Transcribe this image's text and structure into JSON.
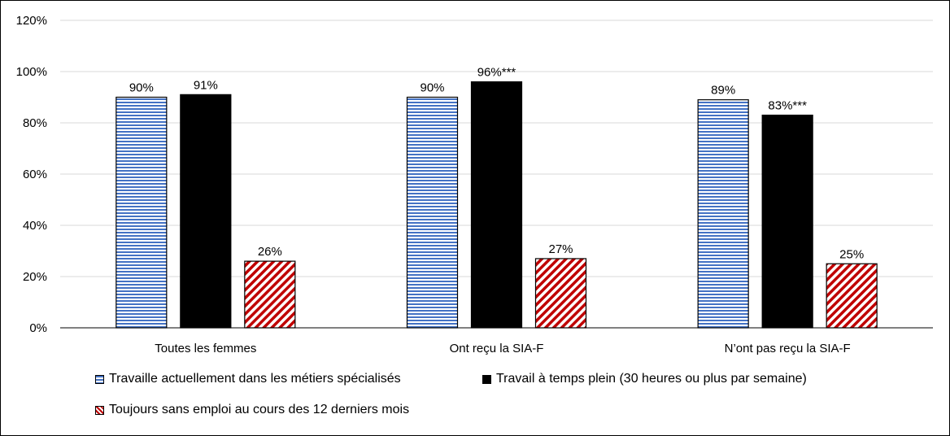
{
  "chart_data": {
    "type": "bar",
    "categories": [
      "Toutes les femmes",
      "Ont reçu la SIA-F",
      "N’ont pas reçu la SIA-F"
    ],
    "series": [
      {
        "name": "Travaille actuellement dans les métiers spécialisés",
        "values": [
          90,
          90,
          89
        ],
        "labels": [
          "90%",
          "90%",
          "89%"
        ],
        "color": "#4472c4",
        "pattern": "horizontal-stripes"
      },
      {
        "name": "Travail à temps plein (30 heures ou plus par semaine)",
        "values": [
          91,
          96,
          83
        ],
        "labels": [
          "91%",
          "96%***",
          "83%***"
        ],
        "color": "#000000",
        "pattern": "solid"
      },
      {
        "name": "Toujours sans emploi au cours des 12 derniers mois",
        "values": [
          26,
          27,
          25
        ],
        "labels": [
          "26%",
          "27%",
          "25%"
        ],
        "color": "#c00000",
        "pattern": "diagonal-stripes"
      }
    ],
    "ylim": [
      0,
      120
    ],
    "yticks": [
      0,
      20,
      40,
      60,
      80,
      100,
      120
    ],
    "ytick_labels": [
      "0%",
      "20%",
      "40%",
      "60%",
      "80%",
      "100%",
      "120%"
    ],
    "grid": true,
    "legend_position": "bottom",
    "title": "",
    "xlabel": "",
    "ylabel": ""
  }
}
